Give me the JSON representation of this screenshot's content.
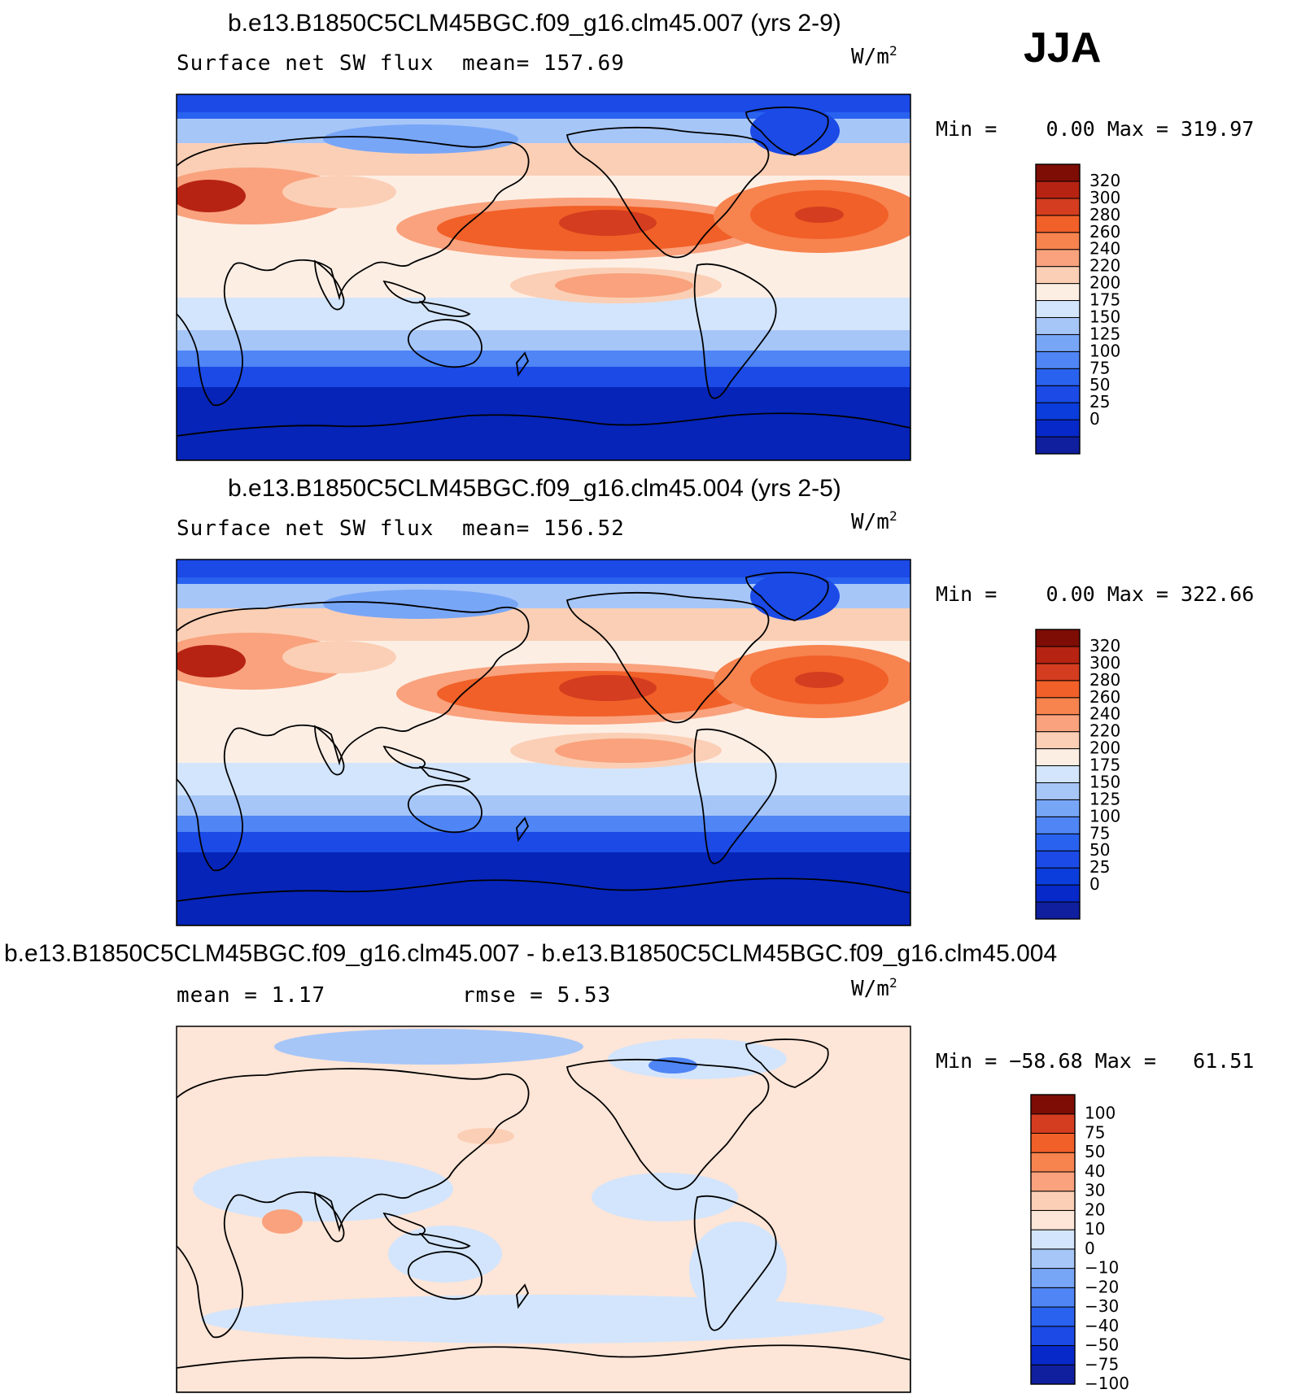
{
  "season": "JJA",
  "colors": {
    "abs_scale": [
      "#0f1f9e",
      "#0729c9",
      "#0a3ddc",
      "#1b4ae6",
      "#2a62f0",
      "#4f85f5",
      "#78a6f7",
      "#a6c6f8",
      "#d3e5fc",
      "#fdeee4",
      "#fbcfb5",
      "#f9a27d",
      "#f7834f",
      "#f16028",
      "#d43d1f",
      "#b72312",
      "#7d0d05"
    ],
    "diff_scale": [
      "#0f1f9e",
      "#0729c9",
      "#1b4ae6",
      "#2a62f0",
      "#4f85f5",
      "#78a6f7",
      "#a6c6f8",
      "#d3e5fc",
      "#fde5d7",
      "#fbcfb5",
      "#f9a27d",
      "#f7834f",
      "#f16028",
      "#d43d1f",
      "#7d0d05"
    ],
    "polar_south": "#0624b8",
    "ocean_high": "#f7834f",
    "ocean_mid": "#fbcfb5",
    "ocean_low": "#d3e5fc"
  },
  "panels": [
    {
      "title": "b.e13.B1850C5CLM45BGC.f09_g16.clm45.007 (yrs 2-9)",
      "left_label": "Surface net SW flux",
      "mid_label": "mean=  157.69",
      "units": "W/m",
      "units_sup": "2",
      "min_max": "Min =    0.00 Max = 319.97",
      "colorbar_labels": [
        "320",
        "300",
        "280",
        "260",
        "240",
        "220",
        "200",
        "175",
        "150",
        "125",
        "100",
        "75",
        "50",
        "25",
        "0"
      ]
    },
    {
      "title": "b.e13.B1850C5CLM45BGC.f09_g16.clm45.004 (yrs 2-5)",
      "left_label": "Surface net SW flux",
      "mid_label": "mean=  156.52",
      "units": "W/m",
      "units_sup": "2",
      "min_max": "Min =    0.00 Max = 322.66",
      "colorbar_labels": [
        "320",
        "300",
        "280",
        "260",
        "240",
        "220",
        "200",
        "175",
        "150",
        "125",
        "100",
        "75",
        "50",
        "25",
        "0"
      ]
    },
    {
      "title": "b.e13.B1850C5CLM45BGC.f09_g16.clm45.007 - b.e13.B1850C5CLM45BGC.f09_g16.clm45.004",
      "left_label": "mean =    1.17",
      "mid_label": "rmse =    5.53",
      "units": "W/m",
      "units_sup": "2",
      "min_max": "Min = −58.68 Max =   61.51",
      "colorbar_labels": [
        "100",
        "75",
        "50",
        "40",
        "30",
        "20",
        "10",
        "0",
        "−10",
        "−20",
        "−30",
        "−40",
        "−50",
        "−75",
        "−100"
      ]
    }
  ]
}
